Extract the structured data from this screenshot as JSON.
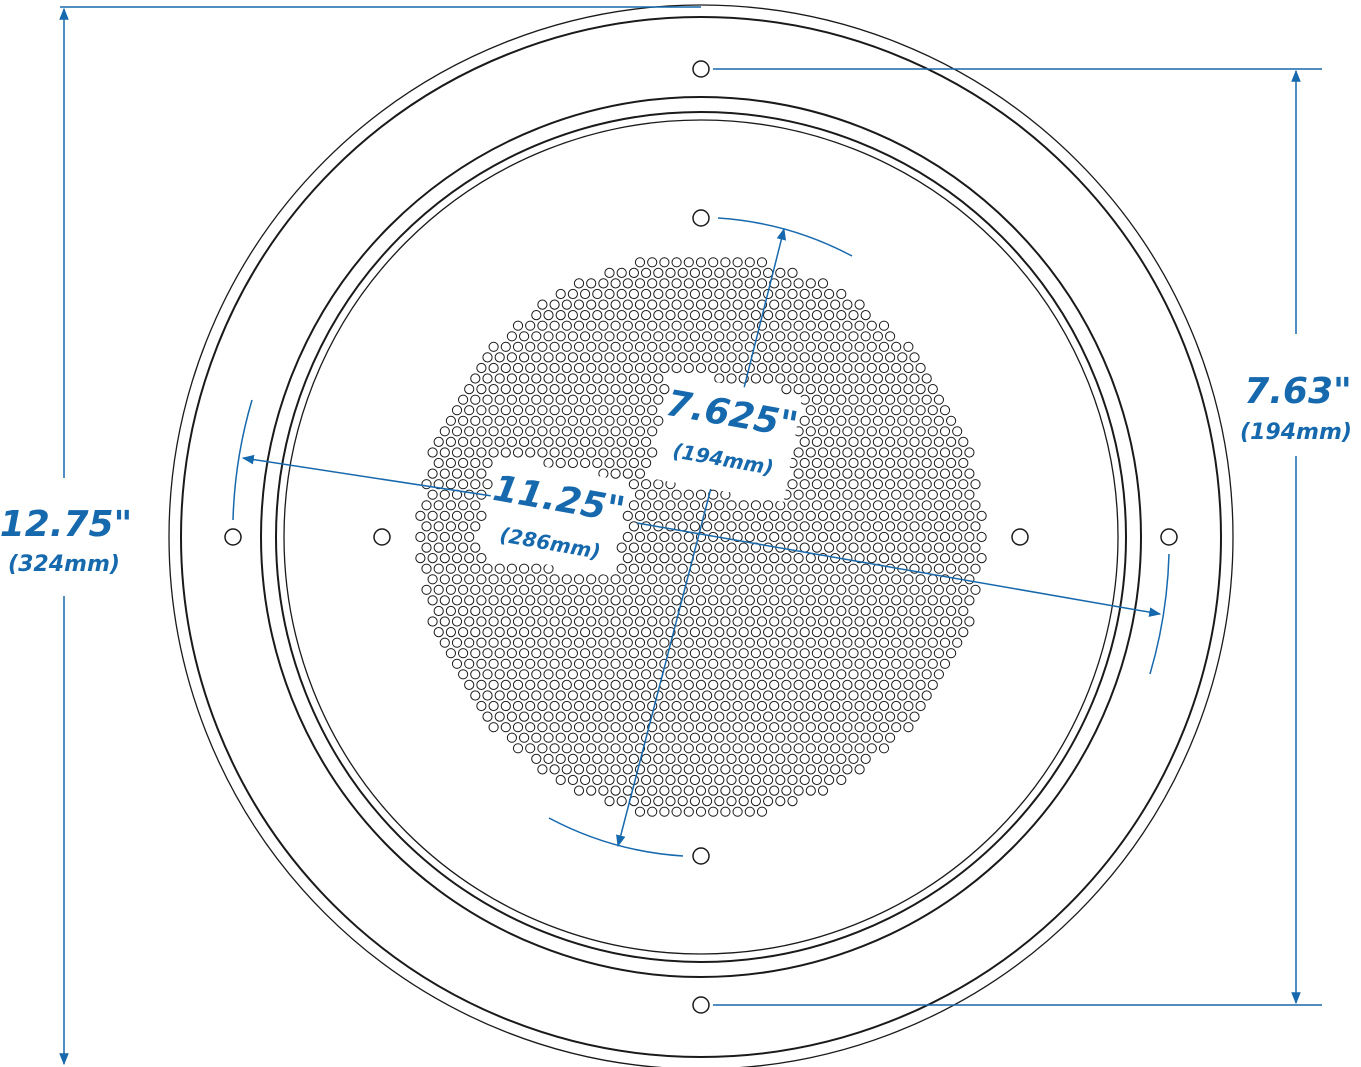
{
  "colors": {
    "dimension": "#1769ad",
    "outline": "#1a1a1a",
    "background": "#ffffff"
  },
  "dimensions": {
    "overall_diameter": {
      "imperial": "12.75\"",
      "metric": "(324mm)"
    },
    "hole_spacing_vertical": {
      "imperial": "7.63\"",
      "metric": "(194mm)"
    },
    "inner_bolt_circle": {
      "imperial": "7.625\"",
      "metric": "(194mm)"
    },
    "outer_bolt_circle": {
      "imperial": "11.25\"",
      "metric": "(286mm)"
    }
  }
}
